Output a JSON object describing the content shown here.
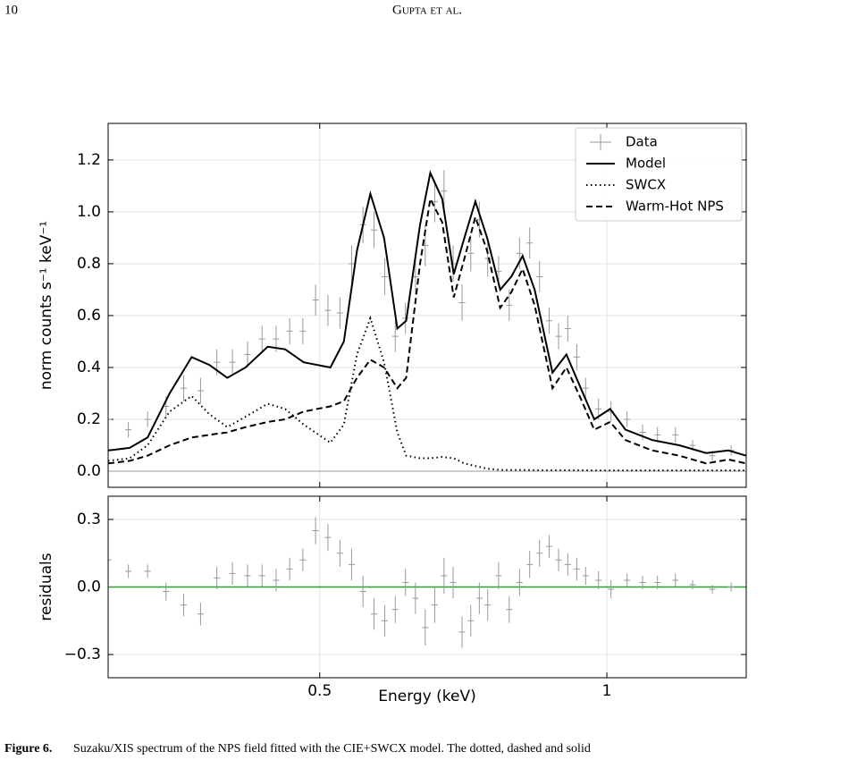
{
  "header": {
    "page_number": "10",
    "running_title": "Gupta et al."
  },
  "chart_data": [
    {
      "type": "line",
      "xscale": "log",
      "xlim": [
        0.3,
        1.4
      ],
      "xticks": [
        0.5,
        1
      ],
      "ylim": [
        -0.062,
        1.341
      ],
      "yticks": [
        {
          "value": 0,
          "label": "0.0"
        },
        0.2,
        0.4,
        0.6,
        0.8,
        {
          "value": 1,
          "label": "1.0"
        },
        1.2
      ],
      "ylabel": "norm counts s⁻¹ keV⁻¹",
      "grid": true,
      "legend": "upper right",
      "zero_line_color": "#999999",
      "x": [
        0.3,
        0.316,
        0.33,
        0.348,
        0.367,
        0.383,
        0.4,
        0.418,
        0.441,
        0.46,
        0.481,
        0.513,
        0.53,
        0.547,
        0.565,
        0.584,
        0.603,
        0.616,
        0.637,
        0.653,
        0.672,
        0.691,
        0.709,
        0.728,
        0.749,
        0.773,
        0.794,
        0.816,
        0.84,
        0.877,
        0.907,
        0.939,
        0.97,
        1.008,
        1.046,
        1.116,
        1.191,
        1.271,
        1.341,
        1.4
      ],
      "series": [
        {
          "name": "Data",
          "color": "#999999",
          "style": "errorbar",
          "x": [
            0.3,
            0.315,
            0.33,
            0.345,
            0.36,
            0.375,
            0.39,
            0.405,
            0.42,
            0.435,
            0.45,
            0.465,
            0.48,
            0.495,
            0.51,
            0.525,
            0.54,
            0.555,
            0.57,
            0.585,
            0.6,
            0.615,
            0.63,
            0.645,
            0.66,
            0.675,
            0.69,
            0.705,
            0.72,
            0.735,
            0.75,
            0.77,
            0.79,
            0.81,
            0.83,
            0.85,
            0.87,
            0.89,
            0.91,
            0.93,
            0.95,
            0.98,
            1.01,
            1.05,
            1.09,
            1.13,
            1.18,
            1.23,
            1.29,
            1.35
          ],
          "values": [
            0.2,
            0.16,
            0.2,
            0.25,
            0.32,
            0.31,
            0.42,
            0.42,
            0.45,
            0.51,
            0.51,
            0.54,
            0.54,
            0.66,
            0.62,
            0.61,
            0.8,
            0.95,
            0.93,
            0.75,
            0.52,
            0.59,
            0.75,
            0.87,
            1.04,
            1.08,
            0.8,
            0.65,
            0.84,
            0.97,
            0.82,
            0.77,
            0.64,
            0.84,
            0.88,
            0.75,
            0.58,
            0.52,
            0.55,
            0.44,
            0.32,
            0.24,
            0.23,
            0.2,
            0.15,
            0.14,
            0.14,
            0.1,
            0.06,
            0.08
          ],
          "errors": [
            0.03,
            0.03,
            0.03,
            0.04,
            0.05,
            0.05,
            0.05,
            0.05,
            0.05,
            0.05,
            0.05,
            0.05,
            0.05,
            0.06,
            0.06,
            0.06,
            0.07,
            0.07,
            0.07,
            0.07,
            0.06,
            0.06,
            0.07,
            0.08,
            0.08,
            0.08,
            0.07,
            0.07,
            0.07,
            0.07,
            0.07,
            0.06,
            0.06,
            0.06,
            0.06,
            0.06,
            0.05,
            0.05,
            0.05,
            0.05,
            0.04,
            0.04,
            0.04,
            0.03,
            0.03,
            0.03,
            0.03,
            0.02,
            0.02,
            0.02
          ]
        },
        {
          "name": "Model",
          "color": "#000000",
          "style": "solid",
          "values": [
            0.08,
            0.09,
            0.13,
            0.3,
            0.44,
            0.41,
            0.36,
            0.4,
            0.48,
            0.47,
            0.42,
            0.4,
            0.5,
            0.85,
            1.07,
            0.9,
            0.55,
            0.58,
            0.95,
            1.15,
            1.05,
            0.76,
            0.9,
            1.04,
            0.9,
            0.7,
            0.75,
            0.83,
            0.7,
            0.38,
            0.45,
            0.32,
            0.2,
            0.24,
            0.16,
            0.12,
            0.1,
            0.07,
            0.08,
            0.06
          ]
        },
        {
          "name": "SWCX",
          "color": "#000000",
          "style": "dotted",
          "values": [
            0.04,
            0.05,
            0.1,
            0.23,
            0.29,
            0.22,
            0.17,
            0.21,
            0.26,
            0.24,
            0.18,
            0.11,
            0.18,
            0.45,
            0.59,
            0.42,
            0.15,
            0.06,
            0.05,
            0.05,
            0.055,
            0.05,
            0.03,
            0.02,
            0.01,
            0.005,
            0.005,
            0.005,
            0.004,
            0.004,
            0.004,
            0.004,
            0.003,
            0.003,
            0.003,
            0.003,
            0.003,
            0.003,
            0.003,
            0.003
          ]
        },
        {
          "name": "Warm-Hot NPS",
          "color": "#000000",
          "style": "dashed",
          "values": [
            0.03,
            0.04,
            0.06,
            0.1,
            0.13,
            0.14,
            0.15,
            0.17,
            0.19,
            0.2,
            0.23,
            0.25,
            0.27,
            0.36,
            0.43,
            0.4,
            0.32,
            0.36,
            0.8,
            1.05,
            0.96,
            0.67,
            0.82,
            0.98,
            0.85,
            0.63,
            0.69,
            0.78,
            0.64,
            0.32,
            0.4,
            0.28,
            0.16,
            0.19,
            0.12,
            0.08,
            0.06,
            0.03,
            0.045,
            0.03
          ]
        }
      ]
    },
    {
      "type": "errorbar",
      "xscale": "log",
      "xlim": [
        0.3,
        1.4
      ],
      "xticks": [
        0.5,
        1
      ],
      "xlabel": "Energy (keV)",
      "ylim": [
        -0.403,
        0.403
      ],
      "yticks": [
        {
          "value": -0.3,
          "label": "−0.3"
        },
        {
          "value": 0,
          "label": "0.0"
        },
        0.3
      ],
      "ylabel": "residuals",
      "grid": true,
      "zero_line_color": "#2ca02c",
      "series": [
        {
          "color": "#999999",
          "style": "errorbar",
          "x": [
            0.3,
            0.315,
            0.33,
            0.345,
            0.36,
            0.375,
            0.39,
            0.405,
            0.42,
            0.435,
            0.45,
            0.465,
            0.48,
            0.495,
            0.51,
            0.525,
            0.54,
            0.555,
            0.57,
            0.585,
            0.6,
            0.615,
            0.63,
            0.645,
            0.66,
            0.675,
            0.69,
            0.705,
            0.72,
            0.735,
            0.75,
            0.77,
            0.79,
            0.81,
            0.83,
            0.85,
            0.87,
            0.89,
            0.91,
            0.93,
            0.95,
            0.98,
            1.01,
            1.05,
            1.09,
            1.13,
            1.18,
            1.23,
            1.29,
            1.35
          ],
          "values": [
            0.12,
            0.07,
            0.07,
            -0.02,
            -0.08,
            -0.12,
            0.04,
            0.06,
            0.05,
            0.05,
            0.03,
            0.08,
            0.12,
            0.25,
            0.22,
            0.15,
            0.1,
            -0.02,
            -0.12,
            -0.15,
            -0.1,
            0.02,
            -0.05,
            -0.18,
            -0.08,
            0.05,
            0.02,
            -0.2,
            -0.15,
            -0.05,
            -0.08,
            0.05,
            -0.1,
            0.02,
            0.1,
            0.15,
            0.18,
            0.12,
            0.1,
            0.08,
            0.05,
            0.03,
            -0.01,
            0.03,
            0.02,
            0.02,
            0.03,
            0.01,
            -0.01,
            0.0
          ],
          "errors": [
            0.03,
            0.03,
            0.03,
            0.04,
            0.05,
            0.05,
            0.05,
            0.05,
            0.05,
            0.05,
            0.05,
            0.05,
            0.05,
            0.06,
            0.06,
            0.06,
            0.07,
            0.07,
            0.07,
            0.07,
            0.06,
            0.06,
            0.07,
            0.08,
            0.08,
            0.08,
            0.07,
            0.07,
            0.07,
            0.07,
            0.07,
            0.06,
            0.06,
            0.06,
            0.06,
            0.06,
            0.05,
            0.05,
            0.05,
            0.05,
            0.04,
            0.04,
            0.04,
            0.03,
            0.03,
            0.03,
            0.03,
            0.02,
            0.02,
            0.02
          ]
        }
      ]
    }
  ],
  "caption": {
    "label": "Figure 6.",
    "text": "Suzaku/XIS spectrum of the NPS field fitted with the CIE+SWCX model. The dotted, dashed and solid"
  }
}
